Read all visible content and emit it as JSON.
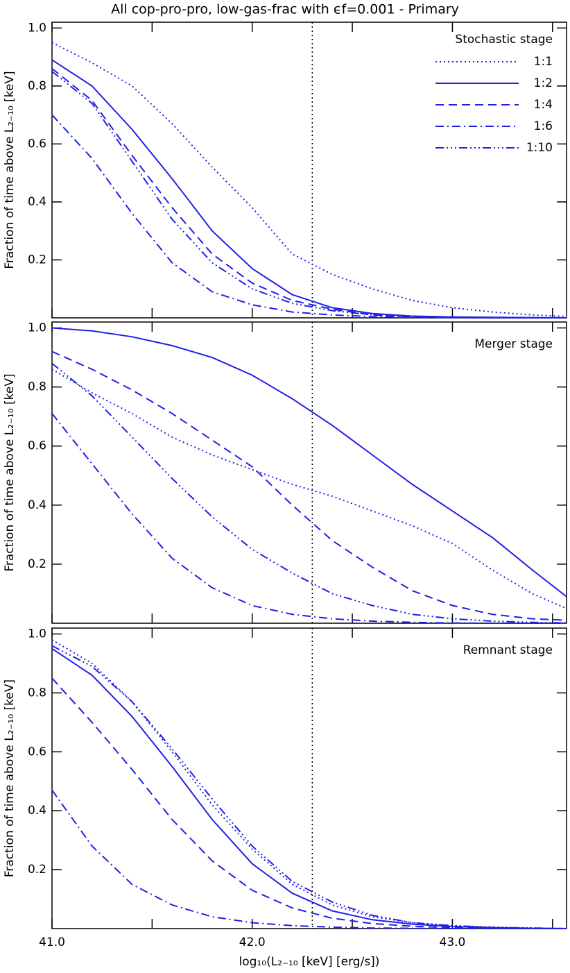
{
  "chart_data": [
    {
      "type": "line",
      "title": "All cop-pro-pro, low-gas-frac with ϵf=0.001 - Primary",
      "ylabel": "Fraction of time above L₂₋₁₀ [keV]",
      "legend_title": "Stochastic stage",
      "legend": "upper right",
      "vline": 42.3,
      "x": [
        41.0,
        41.2,
        41.4,
        41.6,
        41.8,
        42.0,
        42.2,
        42.4,
        42.6,
        42.8,
        43.0,
        43.2,
        43.4,
        43.57
      ],
      "xlim": [
        41.0,
        43.57
      ],
      "ylim": [
        0,
        1.02
      ],
      "xticks": [
        41,
        41.5,
        42,
        42.5,
        43,
        43.5
      ],
      "yticks": [
        0.2,
        0.4,
        0.6,
        0.8,
        {
          "value": 1,
          "label": "1.0"
        }
      ],
      "series": [
        {
          "name": "1:1",
          "color": "#1f1fe6",
          "dash": "dotted",
          "values": [
            0.95,
            0.88,
            0.8,
            0.67,
            0.52,
            0.38,
            0.22,
            0.15,
            0.1,
            0.06,
            0.035,
            0.02,
            0.01,
            0.005
          ]
        },
        {
          "name": "1:2",
          "color": "#1f1fe6",
          "dash": "solid",
          "values": [
            0.89,
            0.8,
            0.65,
            0.48,
            0.3,
            0.17,
            0.08,
            0.035,
            0.015,
            0.006,
            0.003,
            0.002,
            0.001,
            0
          ]
        },
        {
          "name": "1:4",
          "color": "#1f1fe6",
          "dash": "dashed",
          "values": [
            0.86,
            0.75,
            0.56,
            0.38,
            0.22,
            0.12,
            0.06,
            0.03,
            0.01,
            0.005,
            0.002,
            0.001,
            0,
            0
          ]
        },
        {
          "name": "1:6",
          "color": "#1f1fe6",
          "dash": "dashdot",
          "values": [
            0.7,
            0.55,
            0.36,
            0.19,
            0.09,
            0.045,
            0.02,
            0.01,
            0.004,
            0.002,
            0.001,
            0,
            0,
            0
          ]
        },
        {
          "name": "1:10",
          "color": "#1f1fe6",
          "dash": "dashdotdot",
          "values": [
            0.85,
            0.74,
            0.54,
            0.34,
            0.19,
            0.1,
            0.05,
            0.025,
            0.01,
            0.004,
            0.001,
            0,
            0,
            0
          ]
        }
      ]
    },
    {
      "type": "line",
      "ylabel": "Fraction of time above L₂₋₁₀ [keV]",
      "annotation": "Merger stage",
      "vline": 42.3,
      "x": [
        41.0,
        41.2,
        41.4,
        41.6,
        41.8,
        42.0,
        42.2,
        42.4,
        42.6,
        42.8,
        43.0,
        43.2,
        43.4,
        43.57
      ],
      "xlim": [
        41.0,
        43.57
      ],
      "ylim": [
        0,
        1.02
      ],
      "xticks": [
        41,
        41.5,
        42,
        42.5,
        43,
        43.5
      ],
      "yticks": [
        0.2,
        0.4,
        0.6,
        0.8,
        {
          "value": 1,
          "label": "1.0"
        }
      ],
      "series": [
        {
          "color": "#1f1fe6",
          "dash": "dotted",
          "values": [
            0.86,
            0.78,
            0.71,
            0.63,
            0.57,
            0.52,
            0.47,
            0.43,
            0.38,
            0.33,
            0.27,
            0.18,
            0.1,
            0.05
          ]
        },
        {
          "color": "#1f1fe6",
          "dash": "solid",
          "values": [
            1.0,
            0.99,
            0.97,
            0.94,
            0.9,
            0.84,
            0.76,
            0.67,
            0.57,
            0.47,
            0.38,
            0.29,
            0.18,
            0.09
          ]
        },
        {
          "color": "#1f1fe6",
          "dash": "dashed",
          "values": [
            0.92,
            0.86,
            0.79,
            0.71,
            0.62,
            0.53,
            0.4,
            0.28,
            0.19,
            0.11,
            0.06,
            0.03,
            0.015,
            0.01
          ]
        },
        {
          "color": "#1f1fe6",
          "dash": "dashdot",
          "values": [
            0.71,
            0.54,
            0.37,
            0.22,
            0.12,
            0.06,
            0.03,
            0.015,
            0.007,
            0.003,
            0.001,
            0,
            0,
            0
          ]
        },
        {
          "color": "#1f1fe6",
          "dash": "dashdotdot",
          "values": [
            0.88,
            0.77,
            0.63,
            0.49,
            0.36,
            0.25,
            0.17,
            0.1,
            0.06,
            0.03,
            0.015,
            0.007,
            0.003,
            0.001
          ]
        }
      ]
    },
    {
      "type": "line",
      "ylabel": "Fraction of time above L₂₋₁₀ [keV]",
      "xlabel": "log₁₀(L₂₋₁₀ [keV] [erg/s])",
      "annotation": "Remnant stage",
      "vline": 42.3,
      "x": [
        41.0,
        41.2,
        41.4,
        41.6,
        41.8,
        42.0,
        42.2,
        42.4,
        42.6,
        42.8,
        43.0,
        43.2,
        43.4,
        43.57
      ],
      "xlim": [
        41.0,
        43.57
      ],
      "ylim": [
        0,
        1.02
      ],
      "xticks": [
        {
          "value": 41,
          "label": "41.0"
        },
        41.5,
        {
          "value": 42,
          "label": "42.0"
        },
        42.5,
        {
          "value": 43,
          "label": "43.0"
        },
        43.5
      ],
      "yticks": [
        0.2,
        0.4,
        0.6,
        0.8,
        {
          "value": 1,
          "label": "1.0"
        }
      ],
      "series": [
        {
          "color": "#1f1fe6",
          "dash": "dotted",
          "values": [
            0.98,
            0.9,
            0.77,
            0.6,
            0.42,
            0.27,
            0.15,
            0.08,
            0.04,
            0.02,
            0.01,
            0.005,
            0.002,
            0
          ]
        },
        {
          "color": "#1f1fe6",
          "dash": "solid",
          "values": [
            0.95,
            0.86,
            0.72,
            0.55,
            0.37,
            0.22,
            0.12,
            0.06,
            0.03,
            0.015,
            0.007,
            0.003,
            0.001,
            0
          ]
        },
        {
          "color": "#1f1fe6",
          "dash": "dashed",
          "values": [
            0.85,
            0.7,
            0.54,
            0.37,
            0.23,
            0.13,
            0.07,
            0.035,
            0.017,
            0.008,
            0.003,
            0.001,
            0,
            0
          ]
        },
        {
          "color": "#1f1fe6",
          "dash": "dashdot",
          "values": [
            0.47,
            0.28,
            0.15,
            0.08,
            0.04,
            0.02,
            0.01,
            0.005,
            0.002,
            0.001,
            0,
            0,
            0,
            0
          ]
        },
        {
          "color": "#1f1fe6",
          "dash": "dashdotdot",
          "values": [
            0.96,
            0.89,
            0.77,
            0.61,
            0.44,
            0.28,
            0.16,
            0.09,
            0.045,
            0.02,
            0.01,
            0.004,
            0.002,
            0
          ]
        }
      ]
    }
  ]
}
